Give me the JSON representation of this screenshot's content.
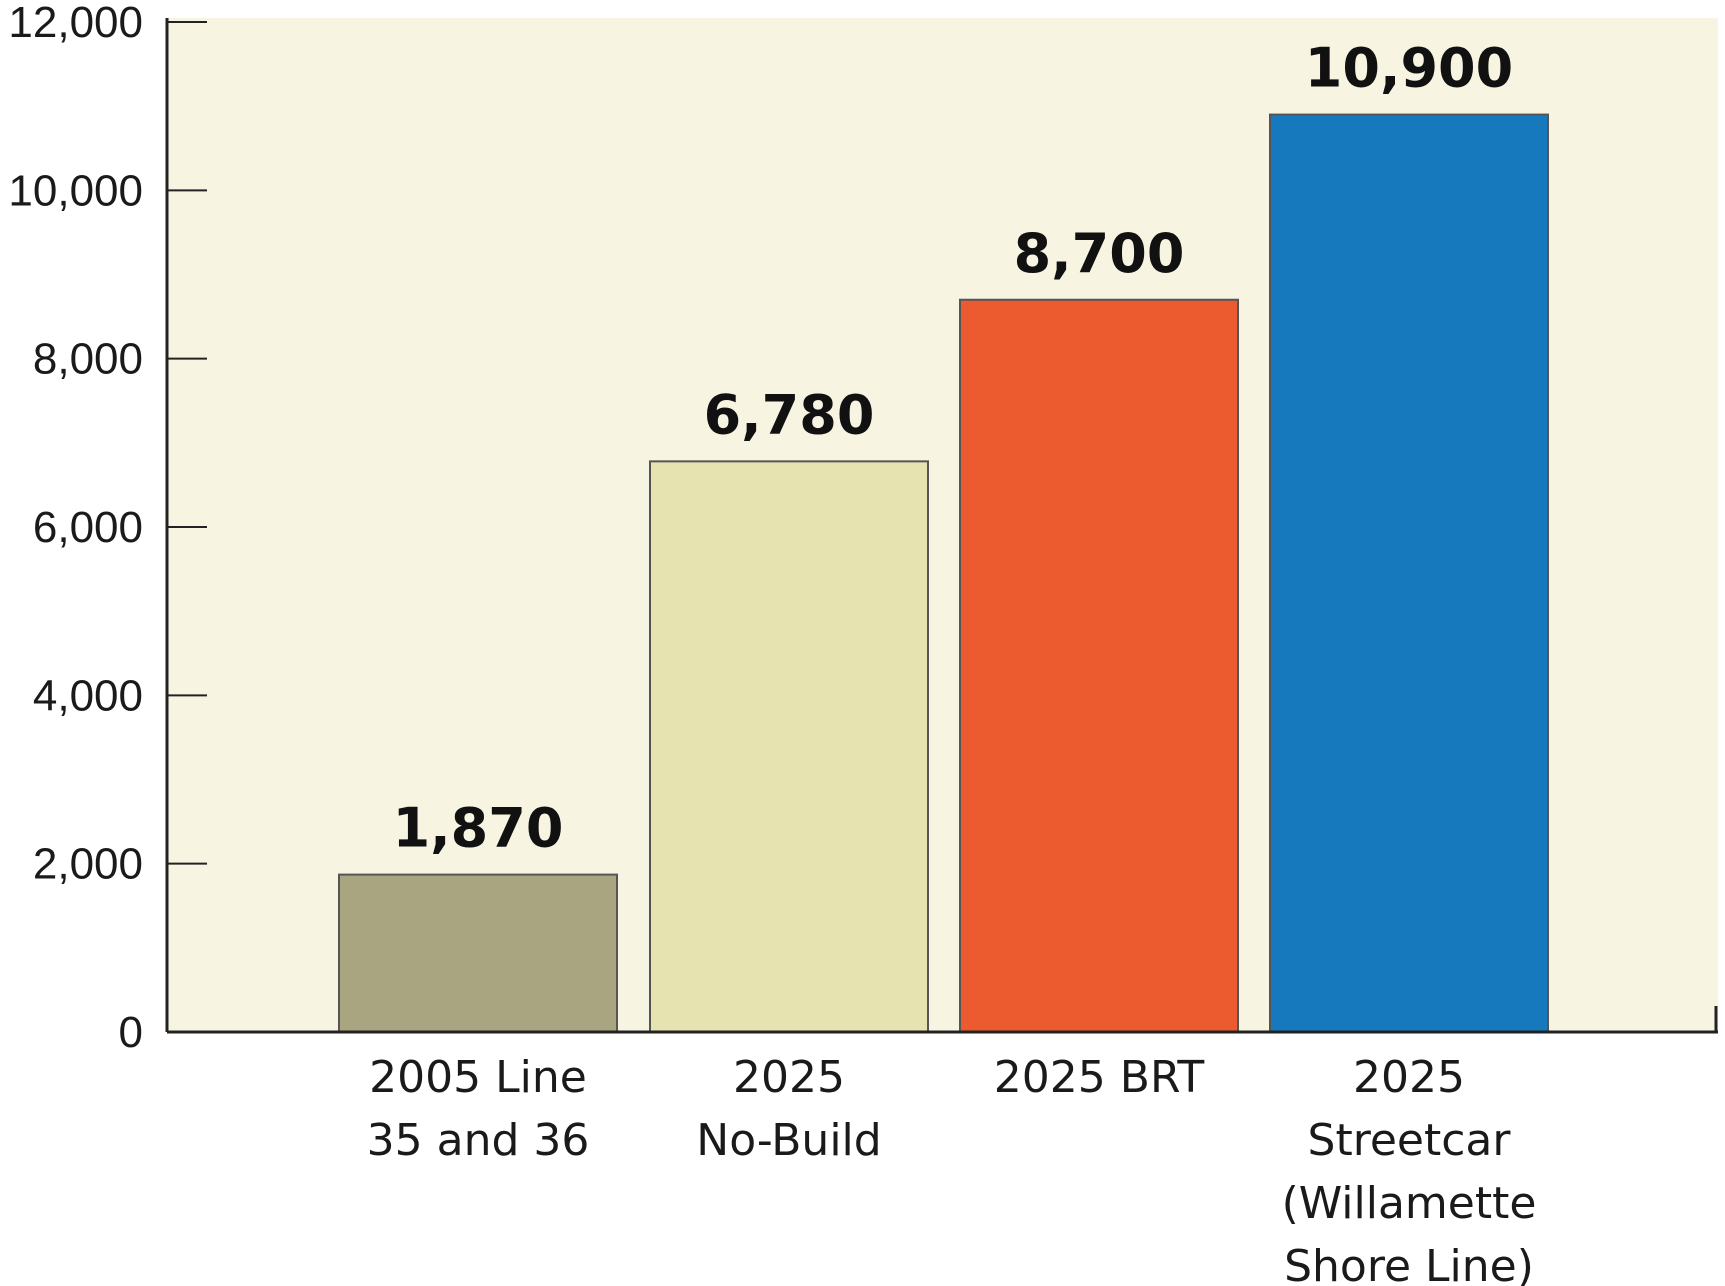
{
  "chart_data": {
    "type": "bar",
    "categories": [
      [
        "2005 Line",
        "35 and 36"
      ],
      [
        "2025",
        "No-Build"
      ],
      [
        "2025 BRT"
      ],
      [
        "2025",
        "Streetcar",
        "(Willamette",
        "Shore Line)"
      ]
    ],
    "values": [
      1870,
      6780,
      8700,
      10900
    ],
    "value_labels": [
      "1,870",
      "6,780",
      "8,700",
      "10,900"
    ],
    "bar_colors": [
      "#a8a580",
      "#e6e3b0",
      "#ec5a30",
      "#1679be"
    ],
    "plot_background": "#f7f5e2",
    "ylim": [
      0,
      12000
    ],
    "yticks": [
      0,
      2000,
      4000,
      6000,
      8000,
      10000,
      12000
    ],
    "ytick_labels": [
      "0",
      "2,000",
      "4,000",
      "6,000",
      "8,000",
      "10,000",
      "12,000"
    ],
    "title": "",
    "xlabel": "",
    "ylabel": "",
    "grid": false,
    "legend": "none"
  }
}
